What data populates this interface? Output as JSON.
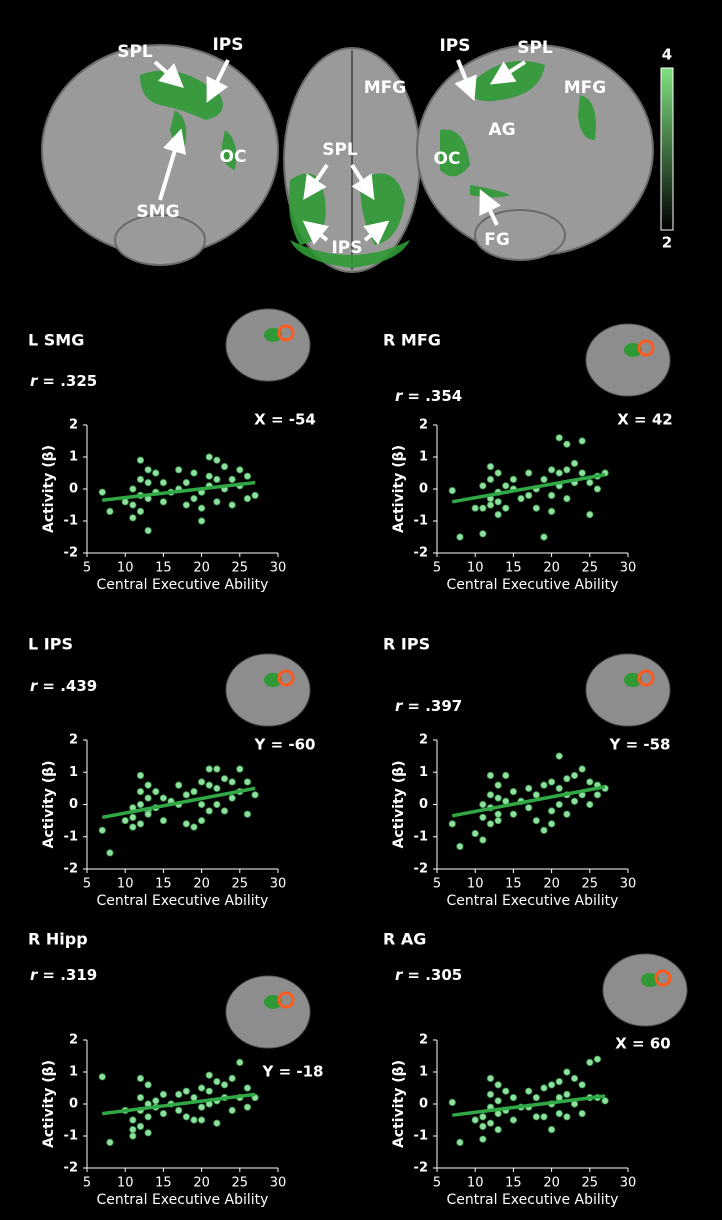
{
  "brain_map": {
    "labels": [
      "SPL",
      "IPS",
      "SMG",
      "OC",
      "MFG",
      "SPL",
      "IPS",
      "IPS",
      "SPL",
      "MFG",
      "AG",
      "OC",
      "FG"
    ],
    "colorbar": {
      "range": [
        2,
        4
      ],
      "ticks": [
        4,
        2
      ]
    }
  },
  "chart_data": [
    {
      "type": "scatter",
      "title": "L SMG",
      "annotation": {
        "symbol": "r",
        "text": "= .325"
      },
      "slice": "X = -54",
      "xlabel": "Central Executive Ability",
      "ylabel": "Activity (β)",
      "xlim": [
        5,
        30
      ],
      "xticks": [
        5,
        10,
        15,
        20,
        25,
        30
      ],
      "ylim": [
        -2,
        2
      ],
      "yticks": [
        -2,
        -1,
        0,
        1,
        2
      ],
      "color": "#8fe0a0",
      "line_color": "#2fa845",
      "x": [
        7,
        8,
        10,
        11,
        11,
        11,
        12,
        12,
        12,
        12,
        13,
        13,
        13,
        13,
        14,
        14,
        15,
        15,
        16,
        17,
        17,
        18,
        18,
        19,
        19,
        20,
        20,
        20,
        21,
        21,
        21,
        22,
        22,
        22,
        23,
        23,
        24,
        24,
        25,
        25,
        26,
        26,
        27
      ],
      "y": [
        -0.1,
        -0.7,
        -0.4,
        0,
        -0.5,
        -0.9,
        0.9,
        0.3,
        -0.2,
        -0.7,
        0.6,
        0.2,
        -0.3,
        -1.3,
        0.5,
        -0.1,
        0.2,
        -0.4,
        -0.1,
        0.6,
        0,
        0.2,
        -0.5,
        0.5,
        -0.3,
        -0.1,
        -0.6,
        -1,
        1,
        0.4,
        0.1,
        0.9,
        0.3,
        -0.4,
        0.7,
        0,
        0.3,
        -0.5,
        0.6,
        0.1,
        0.4,
        -0.3,
        -0.2
      ],
      "fit": {
        "x": [
          7,
          27
        ],
        "y": [
          -0.35,
          0.2
        ]
      }
    },
    {
      "type": "scatter",
      "title": "R MFG",
      "annotation": {
        "symbol": "r",
        "text": "= .354"
      },
      "slice": "X = 42",
      "xlabel": "Central Executive Ability",
      "ylabel": "Activity (β)",
      "xlim": [
        5,
        30
      ],
      "xticks": [
        5,
        10,
        15,
        20,
        25,
        30
      ],
      "ylim": [
        -2,
        2
      ],
      "yticks": [
        -2,
        -1,
        0,
        1,
        2
      ],
      "color": "#8fe0a0",
      "line_color": "#2fa845",
      "x": [
        7,
        8,
        10,
        11,
        11,
        11,
        12,
        12,
        12,
        12,
        13,
        13,
        13,
        13,
        14,
        14,
        15,
        15,
        16,
        17,
        17,
        18,
        18,
        19,
        19,
        20,
        20,
        20,
        21,
        21,
        21,
        22,
        22,
        22,
        23,
        23,
        24,
        24,
        25,
        25,
        26,
        26,
        27
      ],
      "y": [
        -0.05,
        -1.5,
        -0.6,
        -1.4,
        0.1,
        -0.6,
        0.7,
        0.3,
        -0.3,
        -0.5,
        0.5,
        -0.1,
        -0.8,
        -0.4,
        0.1,
        -0.6,
        0.3,
        0,
        -0.3,
        0.5,
        -0.2,
        0,
        -0.6,
        0.3,
        -1.5,
        0.6,
        -0.2,
        -0.7,
        1.6,
        0.5,
        0.1,
        1.4,
        0.6,
        -0.3,
        0.8,
        0.2,
        1.5,
        0.5,
        0.2,
        -0.8,
        0.4,
        0,
        0.5
      ],
      "fit": {
        "x": [
          7,
          27
        ],
        "y": [
          -0.4,
          0.45
        ]
      }
    },
    {
      "type": "scatter",
      "title": "L IPS",
      "annotation": {
        "symbol": "r",
        "text": "= .439"
      },
      "slice": "Y = -60",
      "xlabel": "Central Executive Ability",
      "ylabel": "Activity (β)",
      "xlim": [
        5,
        30
      ],
      "xticks": [
        5,
        10,
        15,
        20,
        25,
        30
      ],
      "ylim": [
        -2,
        2
      ],
      "yticks": [
        -2,
        -1,
        0,
        1,
        2
      ],
      "color": "#8fe0a0",
      "line_color": "#2fa845",
      "x": [
        7,
        8,
        10,
        11,
        11,
        11,
        12,
        12,
        12,
        12,
        13,
        13,
        13,
        13,
        14,
        14,
        15,
        15,
        16,
        17,
        17,
        18,
        18,
        19,
        19,
        20,
        20,
        20,
        21,
        21,
        21,
        22,
        22,
        22,
        23,
        23,
        24,
        24,
        25,
        25,
        26,
        26,
        27
      ],
      "y": [
        -0.8,
        -1.5,
        -0.5,
        -0.1,
        -0.4,
        -0.7,
        0.9,
        0.4,
        0,
        -0.6,
        0.6,
        0.2,
        -0.2,
        -0.3,
        0.4,
        -0.1,
        0.2,
        -0.5,
        0.1,
        0.6,
        0,
        0.3,
        -0.6,
        0.4,
        -0.7,
        0.7,
        0,
        -0.5,
        1.1,
        0.6,
        -0.2,
        1.1,
        0.5,
        0,
        0.8,
        -0.2,
        0.7,
        0.2,
        1.1,
        0.4,
        0.7,
        -0.3,
        0.3
      ],
      "fit": {
        "x": [
          7,
          27
        ],
        "y": [
          -0.4,
          0.5
        ]
      }
    },
    {
      "type": "scatter",
      "title": "R IPS",
      "annotation": {
        "symbol": "r",
        "text": "= .397"
      },
      "slice": "Y = -58",
      "xlabel": "Central Executive Ability",
      "ylabel": "Activity (β)",
      "xlim": [
        5,
        30
      ],
      "xticks": [
        5,
        10,
        15,
        20,
        25,
        30
      ],
      "ylim": [
        -2,
        2
      ],
      "yticks": [
        -2,
        -1,
        0,
        1,
        2
      ],
      "color": "#8fe0a0",
      "line_color": "#2fa845",
      "x": [
        7,
        8,
        10,
        11,
        11,
        11,
        12,
        12,
        12,
        12,
        13,
        13,
        13,
        13,
        14,
        14,
        15,
        15,
        16,
        17,
        17,
        18,
        18,
        19,
        19,
        20,
        20,
        20,
        21,
        21,
        21,
        22,
        22,
        22,
        23,
        23,
        24,
        24,
        25,
        25,
        26,
        26,
        27
      ],
      "y": [
        -0.6,
        -1.3,
        -0.9,
        0,
        -0.4,
        -1.1,
        0.9,
        0.3,
        -0.1,
        -0.6,
        0.6,
        0.2,
        -0.3,
        -0.5,
        0.9,
        0.1,
        0.4,
        -0.3,
        0.1,
        0.5,
        -0.1,
        0.3,
        -0.5,
        0.6,
        -0.8,
        0.7,
        -0.2,
        -0.6,
        1.5,
        0.5,
        0,
        0.8,
        0.3,
        -0.3,
        0.9,
        0.1,
        1.1,
        0.3,
        0.7,
        0,
        0.6,
        0.3,
        0.5
      ],
      "fit": {
        "x": [
          7,
          27
        ],
        "y": [
          -0.35,
          0.55
        ]
      }
    },
    {
      "type": "scatter",
      "title": "R Hipp",
      "annotation": {
        "symbol": "r",
        "text": "= .319"
      },
      "slice": "Y = -18",
      "xlabel": "Central Executive Ability",
      "ylabel": "Activity (β)",
      "xlim": [
        5,
        30
      ],
      "xticks": [
        5,
        10,
        15,
        20,
        25,
        30
      ],
      "ylim": [
        -2,
        2
      ],
      "yticks": [
        -2,
        -1,
        0,
        1,
        2
      ],
      "color": "#8fe0a0",
      "line_color": "#2fa845",
      "x": [
        7,
        8,
        10,
        11,
        11,
        11,
        12,
        12,
        12,
        12,
        13,
        13,
        13,
        13,
        14,
        14,
        15,
        15,
        16,
        17,
        17,
        18,
        18,
        19,
        19,
        20,
        20,
        20,
        21,
        21,
        21,
        22,
        22,
        22,
        23,
        23,
        24,
        24,
        25,
        25,
        26,
        26,
        27
      ],
      "y": [
        0.85,
        -1.2,
        -0.2,
        -0.5,
        -1,
        -0.8,
        0.8,
        0.2,
        -0.2,
        -0.7,
        0.6,
        0,
        -0.4,
        -0.9,
        0.1,
        -0.1,
        0.3,
        -0.3,
        0,
        0.3,
        -0.2,
        0.4,
        -0.4,
        0.2,
        -0.5,
        0.5,
        -0.1,
        -0.5,
        0.9,
        0.4,
        0,
        0.7,
        0.1,
        -0.6,
        0.6,
        0.2,
        0.8,
        -0.2,
        1.3,
        0.2,
        0.5,
        -0.1,
        0.2
      ],
      "fit": {
        "x": [
          7,
          27
        ],
        "y": [
          -0.3,
          0.3
        ]
      }
    },
    {
      "type": "scatter",
      "title": "R AG",
      "annotation": {
        "symbol": "r",
        "text": "= .305"
      },
      "slice": "X = 60",
      "xlabel": "Central Executive Ability",
      "ylabel": "Activity (β)",
      "xlim": [
        5,
        30
      ],
      "xticks": [
        5,
        10,
        15,
        20,
        25,
        30
      ],
      "ylim": [
        -2,
        2
      ],
      "yticks": [
        -2,
        -1,
        0,
        1,
        2
      ],
      "color": "#8fe0a0",
      "line_color": "#2fa845",
      "x": [
        7,
        8,
        10,
        11,
        11,
        11,
        12,
        12,
        12,
        12,
        13,
        13,
        13,
        13,
        14,
        14,
        15,
        15,
        16,
        17,
        17,
        18,
        18,
        19,
        19,
        20,
        20,
        20,
        21,
        21,
        21,
        22,
        22,
        22,
        23,
        23,
        24,
        24,
        25,
        25,
        26,
        26,
        27
      ],
      "y": [
        0.05,
        -1.2,
        -0.5,
        -0.7,
        -0.4,
        -1.1,
        0.8,
        0.3,
        -0.1,
        -0.6,
        0.6,
        0.1,
        -0.3,
        -0.8,
        0.4,
        -0.2,
        0.2,
        -0.5,
        -0.1,
        0.4,
        -0.1,
        0.2,
        -0.4,
        0.5,
        -0.4,
        0.6,
        0,
        -0.8,
        0.7,
        0.2,
        -0.3,
        1,
        0.3,
        -0.4,
        0.8,
        0,
        0.6,
        -0.3,
        1.3,
        0.2,
        1.4,
        0.2,
        0.1
      ],
      "fit": {
        "x": [
          7,
          27
        ],
        "y": [
          -0.35,
          0.25
        ]
      }
    }
  ]
}
